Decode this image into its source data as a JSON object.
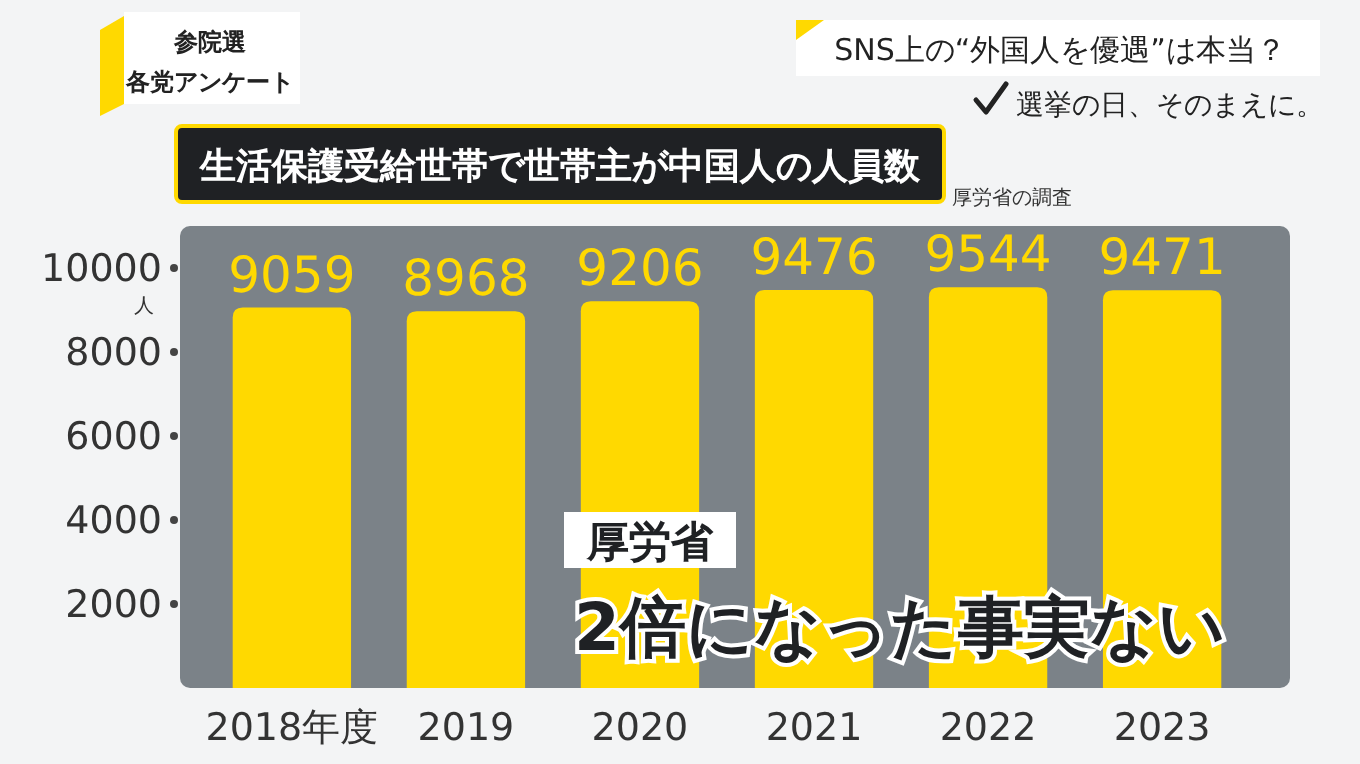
{
  "chart_data": {
    "type": "bar",
    "title": "生活保護受給世帯で世帯主が中国人の人員数",
    "ylabel": "人",
    "categories": [
      "2018年度",
      "2019",
      "2020",
      "2021",
      "2022",
      "2023"
    ],
    "values": [
      9059,
      8968,
      9206,
      9476,
      9544,
      9471
    ],
    "color": "#ffd900",
    "data_labels": true,
    "ylim": [
      0,
      11000
    ],
    "yticks": [
      2000,
      4000,
      6000,
      8000,
      10000
    ],
    "grid": false,
    "annotations": [
      "参院選",
      "各党アンケート",
      "SNS上の“外国人を優遇”は本当？",
      "選挙の日、そのまえに。",
      "厚労省の調査",
      "厚労省",
      "2倍になった事実ない"
    ]
  }
}
